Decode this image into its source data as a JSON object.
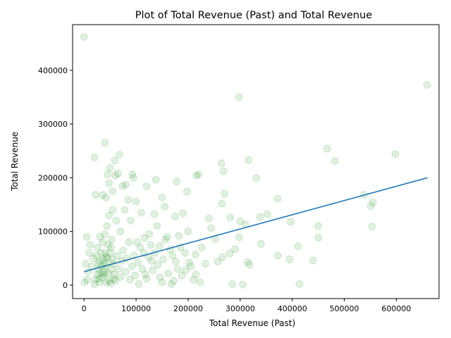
{
  "chart_data": {
    "type": "scatter",
    "title": "Plot of Total Revenue (Past) and Total Revenue",
    "xlabel": "Total Revenue (Past)",
    "ylabel": "Total Revenue",
    "xlim": [
      -22000,
      682000
    ],
    "ylim": [
      -25000,
      485000
    ],
    "x_ticks": [
      0,
      100000,
      200000,
      300000,
      400000,
      500000,
      600000
    ],
    "x_tick_labels": [
      "0",
      "100000",
      "200000",
      "300000",
      "400000",
      "500000",
      "600000"
    ],
    "y_ticks": [
      0,
      100000,
      200000,
      300000,
      400000
    ],
    "y_tick_labels": [
      "0",
      "100000",
      "200000",
      "300000",
      "400000"
    ],
    "grid": false,
    "point_color": "#008000",
    "point_alpha": 0.12,
    "line_color": "#1f77b4",
    "trend_line": {
      "x": [
        0,
        660000
      ],
      "y": [
        25000,
        200000
      ]
    },
    "points": [
      [
        0,
        462000
      ],
      [
        659000,
        373000
      ],
      [
        298000,
        350000
      ],
      [
        40000,
        265000
      ],
      [
        20000,
        238000
      ],
      [
        68000,
        243000
      ],
      [
        467000,
        254000
      ],
      [
        482000,
        231000
      ],
      [
        598000,
        244000
      ],
      [
        264000,
        227000
      ],
      [
        316000,
        233000
      ],
      [
        268000,
        212000
      ],
      [
        331000,
        199000
      ],
      [
        216000,
        204000
      ],
      [
        220000,
        206000
      ],
      [
        93000,
        206000
      ],
      [
        178000,
        193000
      ],
      [
        198000,
        174000
      ],
      [
        270000,
        170000
      ],
      [
        372000,
        161000
      ],
      [
        538000,
        168000
      ],
      [
        551000,
        147000
      ],
      [
        555000,
        154000
      ],
      [
        553000,
        109000
      ],
      [
        265000,
        152000
      ],
      [
        150000,
        163000
      ],
      [
        155000,
        146000
      ],
      [
        120000,
        184000
      ],
      [
        85000,
        159000
      ],
      [
        100000,
        156000
      ],
      [
        59000,
        232000
      ],
      [
        50000,
        218000
      ],
      [
        45000,
        206000
      ],
      [
        60000,
        204000
      ],
      [
        65000,
        208000
      ],
      [
        74000,
        184000
      ],
      [
        80000,
        187000
      ],
      [
        95000,
        200000
      ],
      [
        48000,
        190000
      ],
      [
        36000,
        168000
      ],
      [
        42000,
        163000
      ],
      [
        138000,
        196000
      ],
      [
        22000,
        168000
      ],
      [
        55000,
        175000
      ],
      [
        110000,
        135000
      ],
      [
        135000,
        132000
      ],
      [
        175000,
        128000
      ],
      [
        190000,
        134000
      ],
      [
        240000,
        124000
      ],
      [
        281000,
        126000
      ],
      [
        300000,
        119000
      ],
      [
        310000,
        113000
      ],
      [
        338000,
        127000
      ],
      [
        352000,
        132000
      ],
      [
        397000,
        118000
      ],
      [
        450000,
        110000
      ],
      [
        450000,
        88000
      ],
      [
        411000,
        72000
      ],
      [
        372000,
        55000
      ],
      [
        395000,
        48000
      ],
      [
        440000,
        46000
      ],
      [
        414000,
        2000
      ],
      [
        340000,
        77000
      ],
      [
        298000,
        89000
      ],
      [
        290000,
        67000
      ],
      [
        280000,
        59000
      ],
      [
        266000,
        52000
      ],
      [
        257000,
        44000
      ],
      [
        314000,
        43000
      ],
      [
        318000,
        38000
      ],
      [
        305000,
        1000
      ],
      [
        285000,
        2000
      ],
      [
        233000,
        40000
      ],
      [
        244000,
        106000
      ],
      [
        252000,
        86000
      ],
      [
        226000,
        70000
      ],
      [
        214000,
        57000
      ],
      [
        202000,
        42000
      ],
      [
        195000,
        28000
      ],
      [
        210000,
        10000
      ],
      [
        223000,
        5000
      ],
      [
        180000,
        30000
      ],
      [
        170000,
        55000
      ],
      [
        160000,
        90000
      ],
      [
        145000,
        73000
      ],
      [
        130000,
        45000
      ],
      [
        118000,
        20000
      ],
      [
        105000,
        2000
      ],
      [
        150000,
        5000
      ],
      [
        168000,
        2000
      ],
      [
        200000,
        100000
      ],
      [
        185000,
        70000
      ],
      [
        140000,
        110000
      ],
      [
        125000,
        95000
      ],
      [
        115000,
        60000
      ],
      [
        102000,
        80000
      ],
      [
        90000,
        120000
      ],
      [
        78000,
        140000
      ],
      [
        70000,
        100000
      ],
      [
        62000,
        120000
      ],
      [
        55000,
        140000
      ],
      [
        48000,
        130000
      ],
      [
        44000,
        110000
      ],
      [
        40000,
        95000
      ],
      [
        36000,
        80000
      ],
      [
        33000,
        60000
      ],
      [
        30000,
        45000
      ],
      [
        28000,
        30000
      ],
      [
        25000,
        20000
      ],
      [
        22000,
        10000
      ],
      [
        20000,
        2000
      ],
      [
        18000,
        50000
      ],
      [
        15000,
        35000
      ],
      [
        12000,
        75000
      ],
      [
        10000,
        60000
      ],
      [
        8000,
        25000
      ],
      [
        6000,
        10000
      ],
      [
        3000,
        40000
      ],
      [
        1000,
        5000
      ],
      [
        5000,
        90000
      ],
      [
        30000,
        5000
      ],
      [
        35000,
        15000
      ],
      [
        38000,
        25000
      ],
      [
        42000,
        35000
      ],
      [
        45000,
        50000
      ],
      [
        50000,
        60000
      ],
      [
        52000,
        70000
      ],
      [
        56000,
        40000
      ],
      [
        58000,
        20000
      ],
      [
        60000,
        8000
      ],
      [
        64000,
        55000
      ],
      [
        66000,
        30000
      ],
      [
        70000,
        15000
      ],
      [
        72000,
        45000
      ],
      [
        75000,
        65000
      ],
      [
        80000,
        25000
      ],
      [
        82000,
        50000
      ],
      [
        86000,
        80000
      ],
      [
        88000,
        10000
      ],
      [
        92000,
        35000
      ],
      [
        96000,
        55000
      ],
      [
        98000,
        18000
      ],
      [
        104000,
        42000
      ],
      [
        108000,
        70000
      ],
      [
        112000,
        30000
      ],
      [
        116000,
        88000
      ],
      [
        120000,
        12000
      ],
      [
        124000,
        52000
      ],
      [
        128000,
        75000
      ],
      [
        132000,
        28000
      ],
      [
        136000,
        60000
      ],
      [
        142000,
        38000
      ],
      [
        146000,
        15000
      ],
      [
        152000,
        48000
      ],
      [
        156000,
        85000
      ],
      [
        162000,
        22000
      ],
      [
        166000,
        66000
      ],
      [
        172000,
        8000
      ],
      [
        176000,
        44000
      ],
      [
        182000,
        92000
      ],
      [
        188000,
        18000
      ],
      [
        194000,
        60000
      ],
      [
        205000,
        35000
      ],
      [
        215000,
        20000
      ],
      [
        40000,
        40000
      ],
      [
        42000,
        52000
      ],
      [
        46000,
        22000
      ],
      [
        48000,
        8000
      ],
      [
        52000,
        30000
      ],
      [
        54000,
        48000
      ],
      [
        57000,
        12000
      ],
      [
        34000,
        35000
      ],
      [
        37000,
        48000
      ],
      [
        39000,
        20000
      ],
      [
        41000,
        60000
      ],
      [
        43000,
        5000
      ],
      [
        47000,
        75000
      ],
      [
        51000,
        3000
      ],
      [
        53000,
        85000
      ],
      [
        32000,
        22000
      ],
      [
        29000,
        12000
      ],
      [
        27000,
        40000
      ],
      [
        24000,
        55000
      ],
      [
        26000,
        70000
      ],
      [
        31000,
        90000
      ]
    ]
  }
}
